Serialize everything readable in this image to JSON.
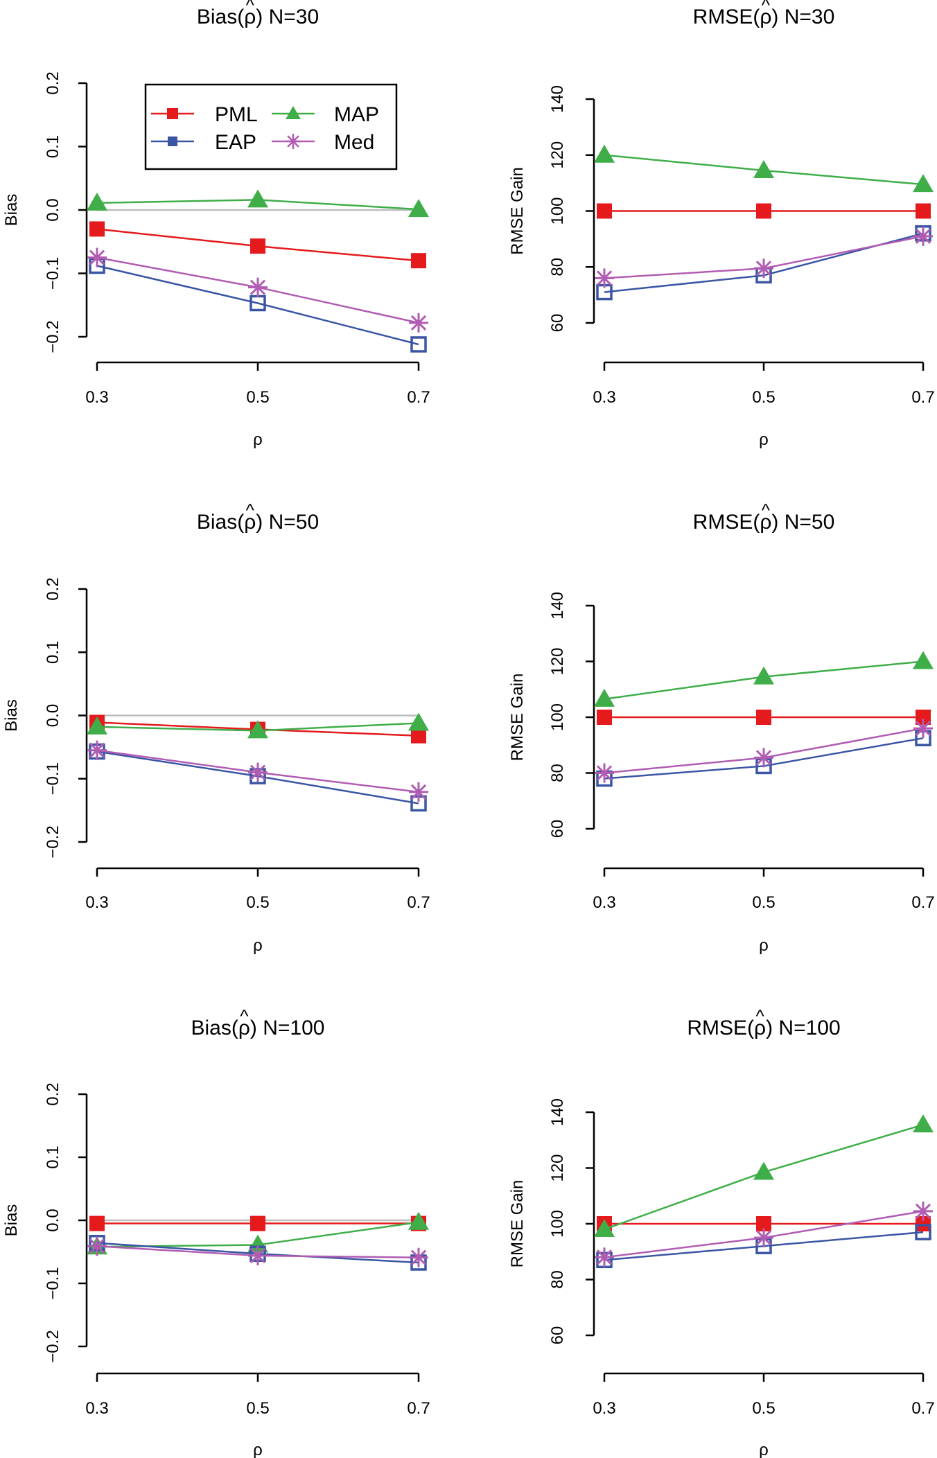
{
  "colors": {
    "PML": "#e41a1c",
    "EAP": "#3a55a4",
    "MAP": "#3fae49",
    "Med": "#b15cb3",
    "zero_line": "#bdbdbd",
    "axis": "#000000"
  },
  "legend": [
    {
      "label": "PML",
      "marker": "square"
    },
    {
      "label": "MAP",
      "marker": "triangle"
    },
    {
      "label": "EAP",
      "marker": "square-open"
    },
    {
      "label": "Med",
      "marker": "asterisk"
    }
  ],
  "chart_data": [
    {
      "type": "line",
      "title_pre": "Bias(",
      "title_symbol": "ρ",
      "title_hat": "^",
      "title_post": ") N=30",
      "xlabel": "ρ",
      "ylabel": "Bias",
      "x": [
        0.3,
        0.5,
        0.7
      ],
      "xticks": [
        "0.3",
        "0.5",
        "0.7"
      ],
      "ylim": [
        -0.2,
        0.2
      ],
      "yticks": [
        -0.2,
        -0.1,
        0.0,
        0.1,
        0.2
      ],
      "ytick_labels": [
        "−0.2",
        "−0.1",
        "0.0",
        "0.1",
        "0.2"
      ],
      "ref_line": 0,
      "series": [
        {
          "name": "PML",
          "values": [
            -0.03,
            -0.057,
            -0.08
          ]
        },
        {
          "name": "EAP",
          "values": [
            -0.088,
            -0.147,
            -0.212
          ]
        },
        {
          "name": "MAP",
          "values": [
            0.011,
            0.016,
            0.001
          ]
        },
        {
          "name": "Med",
          "values": [
            -0.075,
            -0.122,
            -0.178
          ]
        }
      ]
    },
    {
      "type": "line",
      "title_pre": "RMSE(",
      "title_symbol": "ρ",
      "title_hat": "^",
      "title_post": ") N=30",
      "xlabel": "ρ",
      "ylabel": "RMSE Gain",
      "x": [
        0.3,
        0.5,
        0.7
      ],
      "xticks": [
        "0.3",
        "0.5",
        "0.7"
      ],
      "ylim": [
        60,
        140
      ],
      "yticks": [
        60,
        80,
        100,
        120,
        140
      ],
      "ytick_labels": [
        "60",
        "80",
        "100",
        "120",
        "140"
      ],
      "series": [
        {
          "name": "PML",
          "values": [
            100,
            100,
            100
          ]
        },
        {
          "name": "EAP",
          "values": [
            71,
            77,
            92
          ]
        },
        {
          "name": "MAP",
          "values": [
            120,
            114.5,
            109.5
          ]
        },
        {
          "name": "Med",
          "values": [
            76,
            79.5,
            91
          ]
        }
      ]
    },
    {
      "type": "line",
      "title_pre": "Bias(",
      "title_symbol": "ρ",
      "title_hat": "^",
      "title_post": ") N=50",
      "xlabel": "ρ",
      "ylabel": "Bias",
      "x": [
        0.3,
        0.5,
        0.7
      ],
      "xticks": [
        "0.3",
        "0.5",
        "0.7"
      ],
      "ylim": [
        -0.2,
        0.2
      ],
      "yticks": [
        -0.2,
        -0.1,
        0.0,
        0.1,
        0.2
      ],
      "ytick_labels": [
        "−0.2",
        "−0.1",
        "0.0",
        "0.1",
        "0.2"
      ],
      "ref_line": 0,
      "series": [
        {
          "name": "PML",
          "values": [
            -0.011,
            -0.022,
            -0.032
          ]
        },
        {
          "name": "EAP",
          "values": [
            -0.057,
            -0.096,
            -0.139
          ]
        },
        {
          "name": "MAP",
          "values": [
            -0.018,
            -0.024,
            -0.012
          ]
        },
        {
          "name": "Med",
          "values": [
            -0.055,
            -0.09,
            -0.121
          ]
        }
      ]
    },
    {
      "type": "line",
      "title_pre": "RMSE(",
      "title_symbol": "ρ",
      "title_hat": "^",
      "title_post": ") N=50",
      "xlabel": "ρ",
      "ylabel": "RMSE Gain",
      "x": [
        0.3,
        0.5,
        0.7
      ],
      "xticks": [
        "0.3",
        "0.5",
        "0.7"
      ],
      "ylim": [
        60,
        140
      ],
      "yticks": [
        60,
        80,
        100,
        120,
        140
      ],
      "ytick_labels": [
        "60",
        "80",
        "100",
        "120",
        "140"
      ],
      "series": [
        {
          "name": "PML",
          "values": [
            100,
            100,
            100
          ]
        },
        {
          "name": "EAP",
          "values": [
            78,
            82.5,
            92.5
          ]
        },
        {
          "name": "MAP",
          "values": [
            106.5,
            114.5,
            120
          ]
        },
        {
          "name": "Med",
          "values": [
            80,
            85.5,
            96
          ]
        }
      ]
    },
    {
      "type": "line",
      "title_pre": "Bias(",
      "title_symbol": "ρ",
      "title_hat": "^",
      "title_post": ") N=100",
      "xlabel": "ρ",
      "ylabel": "Bias",
      "x": [
        0.3,
        0.5,
        0.7
      ],
      "xticks": [
        "0.3",
        "0.5",
        "0.7"
      ],
      "ylim": [
        -0.2,
        0.2
      ],
      "yticks": [
        -0.2,
        -0.1,
        0.0,
        0.1,
        0.2
      ],
      "ytick_labels": [
        "−0.2",
        "−0.1",
        "0.0",
        "0.1",
        "0.2"
      ],
      "ref_line": 0,
      "series": [
        {
          "name": "PML",
          "values": [
            -0.005,
            -0.005,
            -0.005
          ]
        },
        {
          "name": "EAP",
          "values": [
            -0.036,
            -0.053,
            -0.067
          ]
        },
        {
          "name": "MAP",
          "values": [
            -0.042,
            -0.039,
            -0.003
          ]
        },
        {
          "name": "Med",
          "values": [
            -0.041,
            -0.056,
            -0.059
          ]
        }
      ]
    },
    {
      "type": "line",
      "title_pre": "RMSE(",
      "title_symbol": "ρ",
      "title_hat": "^",
      "title_post": ") N=100",
      "xlabel": "ρ",
      "ylabel": "RMSE Gain",
      "x": [
        0.3,
        0.5,
        0.7
      ],
      "xticks": [
        "0.3",
        "0.5",
        "0.7"
      ],
      "ylim": [
        60,
        140
      ],
      "yticks": [
        60,
        80,
        100,
        120,
        140
      ],
      "ytick_labels": [
        "60",
        "80",
        "100",
        "120",
        "140"
      ],
      "series": [
        {
          "name": "PML",
          "values": [
            100,
            100,
            100
          ]
        },
        {
          "name": "EAP",
          "values": [
            87,
            92,
            97
          ]
        },
        {
          "name": "MAP",
          "values": [
            98,
            118.5,
            135.5
          ]
        },
        {
          "name": "Med",
          "values": [
            88,
            95,
            104.5
          ]
        }
      ]
    }
  ]
}
